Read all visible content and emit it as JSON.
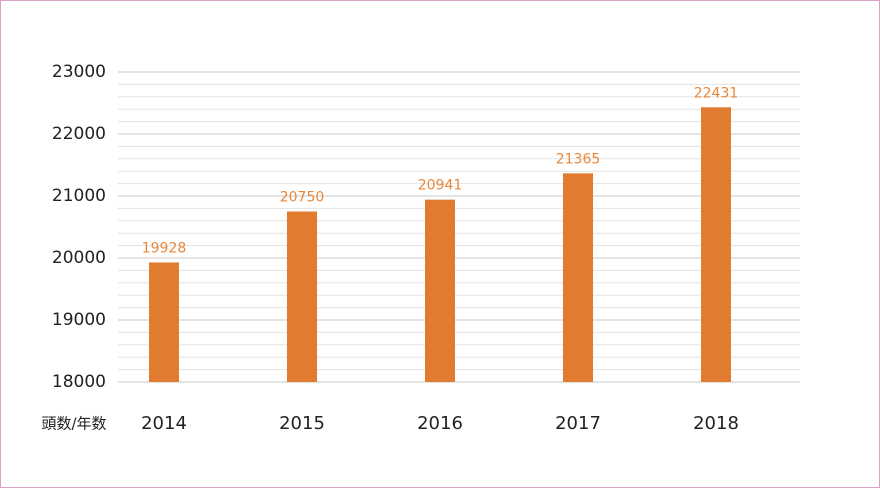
{
  "chart_data": {
    "type": "bar",
    "axis_label": "頭数/年数",
    "categories": [
      "2014",
      "2015",
      "2016",
      "2017",
      "2018"
    ],
    "values": [
      19928,
      20750,
      20941,
      21365,
      22431
    ],
    "color": "#e07b30",
    "value_label_color": "#e8873a",
    "ylim": [
      18000,
      23000
    ],
    "yticks": [
      18000,
      19000,
      20000,
      21000,
      22000,
      23000
    ],
    "minor_yticks": [
      18200,
      18400,
      18600,
      18800,
      19200,
      19400,
      19600,
      19800,
      20200,
      20400,
      20600,
      20800,
      21200,
      21400,
      21600,
      21800,
      22200,
      22400,
      22600,
      22800
    ],
    "grid": true
  }
}
